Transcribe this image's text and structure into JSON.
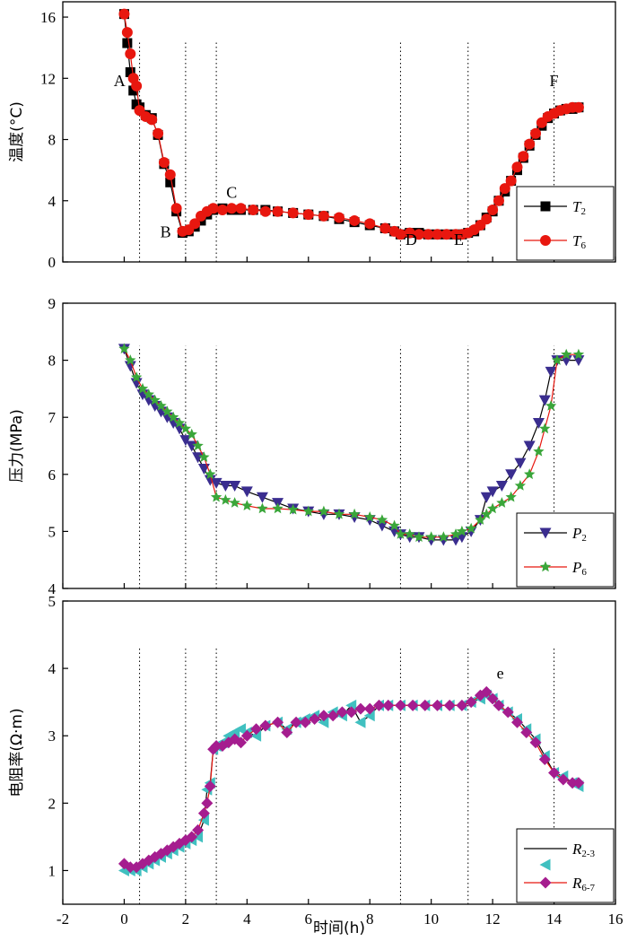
{
  "chart_data": {
    "type": "line",
    "xlabel": "时间(h)",
    "xlim": [
      -2,
      16
    ],
    "x_ticks": [
      "-2",
      "0",
      "2",
      "4",
      "6",
      "8",
      "10",
      "12",
      "14",
      "16"
    ],
    "event_lines_x": [
      0.5,
      2.0,
      3.0,
      9.0,
      11.2,
      14.0
    ],
    "panels": [
      {
        "id": "temperature",
        "ylabel": "温度(°C)",
        "ylim": [
          0,
          17
        ],
        "y_ticks": [
          "0",
          "4",
          "8",
          "12",
          "16"
        ],
        "annotations": [
          {
            "text": "A",
            "x": -0.15,
            "y": 11.5
          },
          {
            "text": "B",
            "x": 1.35,
            "y": 1.6
          },
          {
            "text": "C",
            "x": 3.5,
            "y": 4.2
          },
          {
            "text": "D",
            "x": 9.35,
            "y": 1.1
          },
          {
            "text": "E",
            "x": 10.9,
            "y": 1.1
          },
          {
            "text": "F",
            "x": 14.0,
            "y": 11.5
          }
        ],
        "series": [
          {
            "name": "T",
            "sub": "2",
            "color": "#000000",
            "marker": "square",
            "x": [
              0.0,
              0.1,
              0.2,
              0.3,
              0.4,
              0.5,
              0.7,
              0.9,
              1.1,
              1.3,
              1.5,
              1.7,
              1.9,
              2.1,
              2.3,
              2.5,
              2.7,
              2.9,
              3.2,
              3.5,
              3.8,
              4.2,
              4.6,
              5.0,
              5.5,
              6.0,
              6.5,
              7.0,
              7.5,
              8.0,
              8.5,
              8.8,
              9.0,
              9.3,
              9.6,
              9.9,
              10.2,
              10.5,
              10.8,
              11.0,
              11.2,
              11.4,
              11.6,
              11.8,
              12.0,
              12.2,
              12.4,
              12.6,
              12.8,
              13.0,
              13.2,
              13.4,
              13.6,
              13.8,
              14.0,
              14.2,
              14.4,
              14.6,
              14.8
            ],
            "y": [
              16.2,
              14.3,
              12.4,
              11.2,
              10.3,
              10.1,
              9.6,
              9.4,
              8.3,
              6.4,
              5.2,
              3.3,
              1.9,
              2.0,
              2.3,
              2.7,
              3.1,
              3.4,
              3.5,
              3.4,
              3.4,
              3.4,
              3.4,
              3.3,
              3.2,
              3.1,
              3.0,
              2.8,
              2.6,
              2.4,
              2.2,
              2.0,
              1.8,
              1.9,
              1.9,
              1.8,
              1.8,
              1.8,
              1.8,
              1.8,
              1.9,
              2.0,
              2.4,
              2.9,
              3.3,
              4.0,
              4.6,
              5.3,
              6.0,
              6.8,
              7.6,
              8.3,
              8.9,
              9.4,
              9.7,
              9.9,
              10.0,
              10.0,
              10.1
            ]
          },
          {
            "name": "T",
            "sub": "6",
            "color": "#e8170f",
            "marker": "circle",
            "x": [
              0.0,
              0.1,
              0.2,
              0.3,
              0.4,
              0.5,
              0.7,
              0.9,
              1.1,
              1.3,
              1.5,
              1.7,
              1.9,
              2.1,
              2.3,
              2.5,
              2.7,
              2.9,
              3.2,
              3.5,
              3.8,
              4.2,
              4.6,
              5.0,
              5.5,
              6.0,
              6.5,
              7.0,
              7.5,
              8.0,
              8.5,
              8.8,
              9.0,
              9.3,
              9.6,
              9.9,
              10.2,
              10.5,
              10.8,
              11.0,
              11.2,
              11.4,
              11.6,
              11.8,
              12.0,
              12.2,
              12.4,
              12.6,
              12.8,
              13.0,
              13.2,
              13.4,
              13.6,
              13.8,
              14.0,
              14.2,
              14.4,
              14.6,
              14.8
            ],
            "y": [
              16.2,
              15.0,
              13.6,
              12.0,
              11.5,
              9.9,
              9.5,
              9.3,
              8.4,
              6.5,
              5.7,
              3.5,
              2.0,
              2.1,
              2.5,
              3.0,
              3.3,
              3.5,
              3.4,
              3.5,
              3.5,
              3.4,
              3.3,
              3.3,
              3.2,
              3.1,
              3.0,
              2.9,
              2.7,
              2.5,
              2.2,
              2.0,
              1.8,
              1.9,
              1.8,
              1.8,
              1.8,
              1.8,
              1.8,
              1.8,
              1.9,
              2.1,
              2.4,
              2.8,
              3.4,
              4.0,
              4.8,
              5.3,
              6.2,
              6.9,
              7.7,
              8.4,
              9.1,
              9.5,
              9.7,
              9.9,
              10.0,
              10.1,
              10.1
            ]
          }
        ]
      },
      {
        "id": "pressure",
        "ylabel": "压力(MPa)",
        "ylim": [
          4,
          9
        ],
        "y_ticks": [
          "4",
          "5",
          "6",
          "7",
          "8",
          "9"
        ],
        "annotations": [],
        "series": [
          {
            "name": "P",
            "sub": "2",
            "color": "#000000",
            "marker": "triangle-down",
            "x": [
              0.0,
              0.2,
              0.4,
              0.6,
              0.8,
              1.0,
              1.2,
              1.4,
              1.6,
              1.8,
              2.0,
              2.2,
              2.4,
              2.6,
              2.8,
              3.0,
              3.3,
              3.6,
              4.0,
              4.5,
              5.0,
              5.5,
              6.0,
              6.5,
              7.0,
              7.5,
              8.0,
              8.4,
              8.8,
              9.0,
              9.3,
              9.6,
              10.0,
              10.4,
              10.8,
              11.0,
              11.3,
              11.6,
              11.8,
              12.0,
              12.3,
              12.6,
              12.9,
              13.2,
              13.5,
              13.7,
              13.9,
              14.1,
              14.4,
              14.8
            ],
            "y": [
              8.2,
              7.9,
              7.6,
              7.4,
              7.3,
              7.2,
              7.1,
              7.0,
              6.9,
              6.8,
              6.6,
              6.5,
              6.3,
              6.1,
              5.9,
              5.85,
              5.8,
              5.8,
              5.7,
              5.6,
              5.5,
              5.4,
              5.35,
              5.3,
              5.3,
              5.25,
              5.2,
              5.1,
              5.0,
              4.95,
              4.9,
              4.9,
              4.85,
              4.85,
              4.85,
              4.9,
              5.0,
              5.2,
              5.6,
              5.7,
              5.8,
              6.0,
              6.2,
              6.5,
              6.9,
              7.3,
              7.8,
              8.0,
              8.0,
              8.0
            ]
          },
          {
            "name": "P",
            "sub": "6",
            "color": "#e8170f",
            "marker": "star",
            "x": [
              0.0,
              0.2,
              0.4,
              0.6,
              0.8,
              1.0,
              1.2,
              1.4,
              1.6,
              1.8,
              2.0,
              2.2,
              2.4,
              2.6,
              2.8,
              3.0,
              3.3,
              3.6,
              4.0,
              4.5,
              5.0,
              5.5,
              6.0,
              6.5,
              7.0,
              7.5,
              8.0,
              8.4,
              8.8,
              9.0,
              9.3,
              9.6,
              10.0,
              10.4,
              10.8,
              11.0,
              11.3,
              11.6,
              11.8,
              12.0,
              12.3,
              12.6,
              12.9,
              13.2,
              13.5,
              13.7,
              13.9,
              14.1,
              14.4,
              14.8
            ],
            "y": [
              8.2,
              8.0,
              7.7,
              7.5,
              7.4,
              7.3,
              7.2,
              7.1,
              7.0,
              6.9,
              6.8,
              6.7,
              6.5,
              6.3,
              6.0,
              5.6,
              5.55,
              5.5,
              5.45,
              5.4,
              5.4,
              5.38,
              5.35,
              5.35,
              5.3,
              5.3,
              5.25,
              5.2,
              5.1,
              4.95,
              4.95,
              4.9,
              4.9,
              4.9,
              4.95,
              5.0,
              5.05,
              5.2,
              5.3,
              5.4,
              5.5,
              5.6,
              5.8,
              6.0,
              6.4,
              6.8,
              7.2,
              8.0,
              8.1,
              8.1
            ]
          }
        ]
      },
      {
        "id": "resistivity",
        "ylabel": "电阻率(Ω·m)",
        "ylim": [
          0.5,
          5
        ],
        "y_ticks": [
          "1",
          "2",
          "3",
          "4",
          "5"
        ],
        "annotations": [
          {
            "text": "e",
            "x": 12.25,
            "y": 3.85
          }
        ],
        "series": [
          {
            "name": "R",
            "sub": "2-3",
            "color": "#000000",
            "marker": "triangle-left",
            "marker_color": "#40c0c0",
            "x": [
              0.0,
              0.2,
              0.4,
              0.6,
              0.8,
              1.0,
              1.2,
              1.4,
              1.6,
              1.8,
              2.0,
              2.2,
              2.4,
              2.6,
              2.7,
              2.8,
              2.9,
              3.0,
              3.2,
              3.4,
              3.6,
              3.8,
              4.0,
              4.3,
              4.6,
              5.0,
              5.3,
              5.6,
              5.9,
              6.2,
              6.5,
              6.8,
              7.1,
              7.4,
              7.7,
              8.0,
              8.3,
              8.6,
              9.0,
              9.4,
              9.8,
              10.2,
              10.6,
              11.0,
              11.3,
              11.6,
              11.8,
              12.0,
              12.2,
              12.5,
              12.8,
              13.1,
              13.4,
              13.7,
              14.0,
              14.3,
              14.6,
              14.8
            ],
            "y": [
              1.0,
              1.0,
              1.0,
              1.05,
              1.1,
              1.15,
              1.2,
              1.25,
              1.3,
              1.35,
              1.4,
              1.45,
              1.5,
              1.75,
              2.2,
              2.3,
              2.8,
              2.85,
              2.9,
              3.0,
              3.05,
              3.1,
              3.05,
              3.0,
              3.15,
              3.2,
              3.1,
              3.2,
              3.25,
              3.3,
              3.2,
              3.35,
              3.3,
              3.45,
              3.2,
              3.3,
              3.45,
              3.45,
              3.45,
              3.45,
              3.45,
              3.45,
              3.45,
              3.45,
              3.5,
              3.55,
              3.6,
              3.55,
              3.45,
              3.35,
              3.25,
              3.1,
              2.95,
              2.7,
              2.45,
              2.4,
              2.3,
              2.25
            ]
          },
          {
            "name": "R",
            "sub": "6-7",
            "color": "#e8170f",
            "marker": "diamond",
            "marker_color": "#a51d8f",
            "x": [
              0.0,
              0.2,
              0.4,
              0.6,
              0.8,
              1.0,
              1.2,
              1.4,
              1.6,
              1.8,
              2.0,
              2.2,
              2.4,
              2.6,
              2.7,
              2.8,
              2.9,
              3.0,
              3.2,
              3.4,
              3.6,
              3.8,
              4.0,
              4.3,
              4.6,
              5.0,
              5.3,
              5.6,
              5.9,
              6.2,
              6.5,
              6.8,
              7.1,
              7.4,
              7.7,
              8.0,
              8.3,
              8.6,
              9.0,
              9.4,
              9.8,
              10.2,
              10.6,
              11.0,
              11.3,
              11.6,
              11.8,
              12.0,
              12.2,
              12.5,
              12.8,
              13.1,
              13.4,
              13.7,
              14.0,
              14.3,
              14.6,
              14.8
            ],
            "y": [
              1.1,
              1.05,
              1.05,
              1.1,
              1.15,
              1.2,
              1.25,
              1.3,
              1.35,
              1.4,
              1.45,
              1.5,
              1.6,
              1.85,
              2.0,
              2.25,
              2.8,
              2.85,
              2.85,
              2.9,
              2.95,
              2.9,
              3.0,
              3.1,
              3.15,
              3.2,
              3.05,
              3.2,
              3.2,
              3.25,
              3.3,
              3.3,
              3.35,
              3.35,
              3.4,
              3.4,
              3.45,
              3.45,
              3.45,
              3.45,
              3.45,
              3.45,
              3.45,
              3.45,
              3.5,
              3.6,
              3.65,
              3.55,
              3.45,
              3.35,
              3.2,
              3.05,
              2.9,
              2.65,
              2.45,
              2.35,
              2.3,
              2.3
            ]
          }
        ]
      }
    ]
  }
}
